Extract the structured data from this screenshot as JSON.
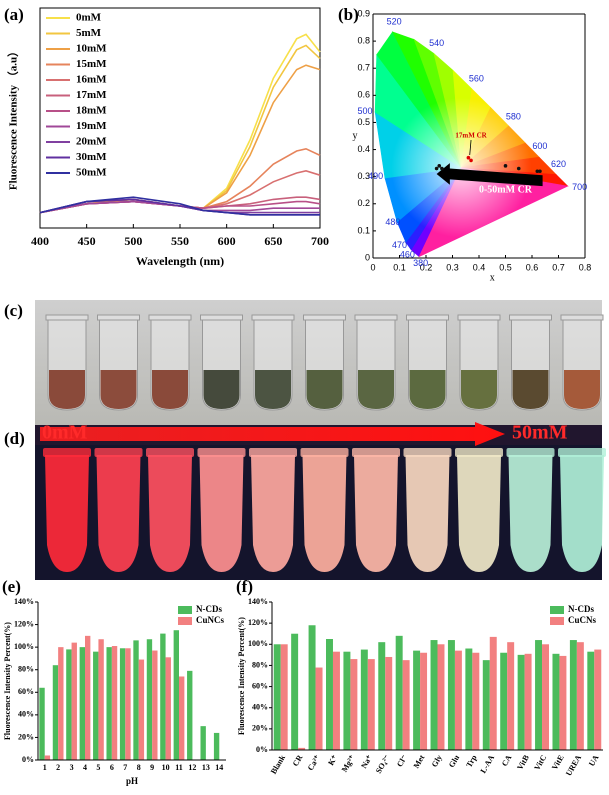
{
  "chart_data": [
    {
      "type": "line",
      "label": "(a)",
      "xlabel": "Wavelength (nm)",
      "ylabel": "Fluorescence Intensity （a.u）",
      "x": [
        400,
        450,
        500,
        550,
        575,
        600,
        625,
        650,
        675,
        685,
        700
      ],
      "xlim": [
        400,
        700
      ],
      "xticks": [
        400,
        450,
        500,
        550,
        600,
        650,
        700
      ],
      "ylim": [
        0,
        100
      ],
      "series": [
        {
          "name": "0mM",
          "color": "#f7e04a",
          "values": [
            7,
            11,
            13,
            10,
            9,
            18,
            40,
            68,
            86,
            88,
            80
          ]
        },
        {
          "name": "5mM",
          "color": "#f2c640",
          "values": [
            7,
            11,
            13,
            10,
            9,
            17,
            37,
            64,
            81,
            83,
            77
          ]
        },
        {
          "name": "10mM",
          "color": "#eea046",
          "values": [
            7,
            11,
            13,
            10,
            9,
            16,
            33,
            57,
            72,
            74,
            72
          ]
        },
        {
          "name": "15mM",
          "color": "#e6845c",
          "values": [
            7,
            11,
            12,
            10,
            9,
            12,
            19,
            29,
            35,
            36,
            33
          ]
        },
        {
          "name": "16mM",
          "color": "#d87070",
          "values": [
            7,
            11,
            12,
            10,
            9,
            11,
            15,
            21,
            25,
            26,
            24
          ]
        },
        {
          "name": "17mM",
          "color": "#c8607c",
          "values": [
            7,
            11,
            12,
            10,
            9,
            10,
            11,
            13,
            14,
            14,
            13
          ]
        },
        {
          "name": "18mM",
          "color": "#b85088",
          "values": [
            7,
            11,
            12,
            10,
            9,
            10,
            10,
            11,
            12,
            12,
            11
          ]
        },
        {
          "name": "19mM",
          "color": "#a04898",
          "values": [
            7,
            11,
            12,
            10,
            8,
            8,
            8,
            9,
            9,
            9,
            9
          ]
        },
        {
          "name": "20mM",
          "color": "#8040a0",
          "values": [
            7,
            12,
            13,
            10,
            8,
            7,
            7,
            7,
            7,
            7,
            7
          ]
        },
        {
          "name": "30mM",
          "color": "#6030a0",
          "values": [
            7,
            12,
            13,
            10,
            8,
            7,
            6,
            6,
            6,
            6,
            6
          ]
        },
        {
          "name": "50mM",
          "color": "#3030a0",
          "values": [
            7,
            12,
            14,
            11,
            8,
            7,
            6,
            6,
            6,
            6,
            6
          ]
        }
      ]
    },
    {
      "type": "cie",
      "label": "(b)",
      "xlabel": "x",
      "ylabel": "y",
      "xlim": [
        0,
        0.8
      ],
      "xticks": [
        0.0,
        0.1,
        0.2,
        0.3,
        0.4,
        0.5,
        0.6,
        0.7,
        0.8
      ],
      "ylim": [
        0,
        0.9
      ],
      "yticks": [
        0.0,
        0.1,
        0.2,
        0.3,
        0.4,
        0.5,
        0.6,
        0.7,
        0.8,
        0.9
      ],
      "locus_labels": [
        380,
        460,
        470,
        480,
        490,
        500,
        520,
        540,
        560,
        580,
        600,
        620,
        700
      ],
      "x": [
        0.24,
        0.25,
        0.26,
        0.36,
        0.37,
        0.5,
        0.55,
        0.62,
        0.63
      ],
      "values": [
        0.33,
        0.34,
        0.33,
        0.37,
        0.36,
        0.34,
        0.33,
        0.32,
        0.32
      ],
      "point_colors": [
        "#111",
        "#111",
        "#111",
        "#e00000",
        "#e00000",
        "#111",
        "#111",
        "#111",
        "#111"
      ],
      "annotations": [
        "17mM CR",
        "0-50mM CR"
      ]
    },
    {
      "type": "bar",
      "label": "(e)",
      "xlabel": "pH",
      "ylabel": "Fluorescence Intensity Percent(%)",
      "categories": [
        "1",
        "2",
        "3",
        "4",
        "5",
        "6",
        "7",
        "8",
        "9",
        "10",
        "11",
        "12",
        "13",
        "14"
      ],
      "ylim": [
        0,
        140
      ],
      "yticks": [
        {
          "value": 0,
          "label": "0%"
        },
        {
          "value": 20,
          "label": "20%"
        },
        {
          "value": 40,
          "label": "40%"
        },
        {
          "value": 60,
          "label": "60%"
        },
        {
          "value": 80,
          "label": "80%"
        },
        {
          "value": 100,
          "label": "100%"
        },
        {
          "value": 120,
          "label": "120%"
        },
        {
          "value": 140,
          "label": "140%"
        }
      ],
      "series": [
        {
          "name": "N-CDs",
          "color": "#4cbb5c",
          "values": [
            64,
            84,
            98,
            100,
            96,
            100,
            99,
            106,
            107,
            112,
            115,
            79,
            30,
            24
          ]
        },
        {
          "name": "CuNCs",
          "color": "#f28080",
          "values": [
            4,
            100,
            104,
            110,
            107,
            101,
            99,
            89,
            97,
            91,
            74,
            null,
            null,
            null
          ]
        }
      ]
    },
    {
      "type": "bar",
      "label": "(f)",
      "ylabel": "Fluorescence Intensity Percent(%)",
      "categories": [
        "Blank",
        "CR",
        "Ca²⁺",
        "K⁺",
        "Mg²⁺",
        "Na⁺",
        "SO₄²⁻",
        "Cl⁻",
        "Met",
        "Gly",
        "Glu",
        "Trp",
        "L-AA",
        "CA",
        "VitB",
        "VitC",
        "VitE",
        "UREA",
        "UA"
      ],
      "ylim": [
        0,
        140
      ],
      "yticks": [
        {
          "value": 0,
          "label": "0%"
        },
        {
          "value": 20,
          "label": "20%"
        },
        {
          "value": 40,
          "label": "40%"
        },
        {
          "value": 60,
          "label": "60%"
        },
        {
          "value": 80,
          "label": "80%"
        },
        {
          "value": 100,
          "label": "100%"
        },
        {
          "value": 120,
          "label": "120%"
        },
        {
          "value": 140,
          "label": "140%"
        }
      ],
      "series": [
        {
          "name": "N-CDs",
          "color": "#4cbb5c",
          "values": [
            100,
            110,
            118,
            105,
            93,
            95,
            102,
            108,
            94,
            104,
            104,
            96,
            85,
            92,
            90,
            104,
            91,
            104,
            93
          ]
        },
        {
          "name": "CuCNs",
          "color": "#f28080",
          "values": [
            100,
            2,
            78,
            93,
            86,
            86,
            88,
            85,
            92,
            100,
            94,
            92,
            107,
            102,
            91,
            100,
            89,
            102,
            95
          ]
        }
      ]
    }
  ],
  "photos": {
    "c": {
      "label": "(c)"
    },
    "d": {
      "label": "(d)",
      "start": "0mM",
      "end": "50mM"
    }
  }
}
